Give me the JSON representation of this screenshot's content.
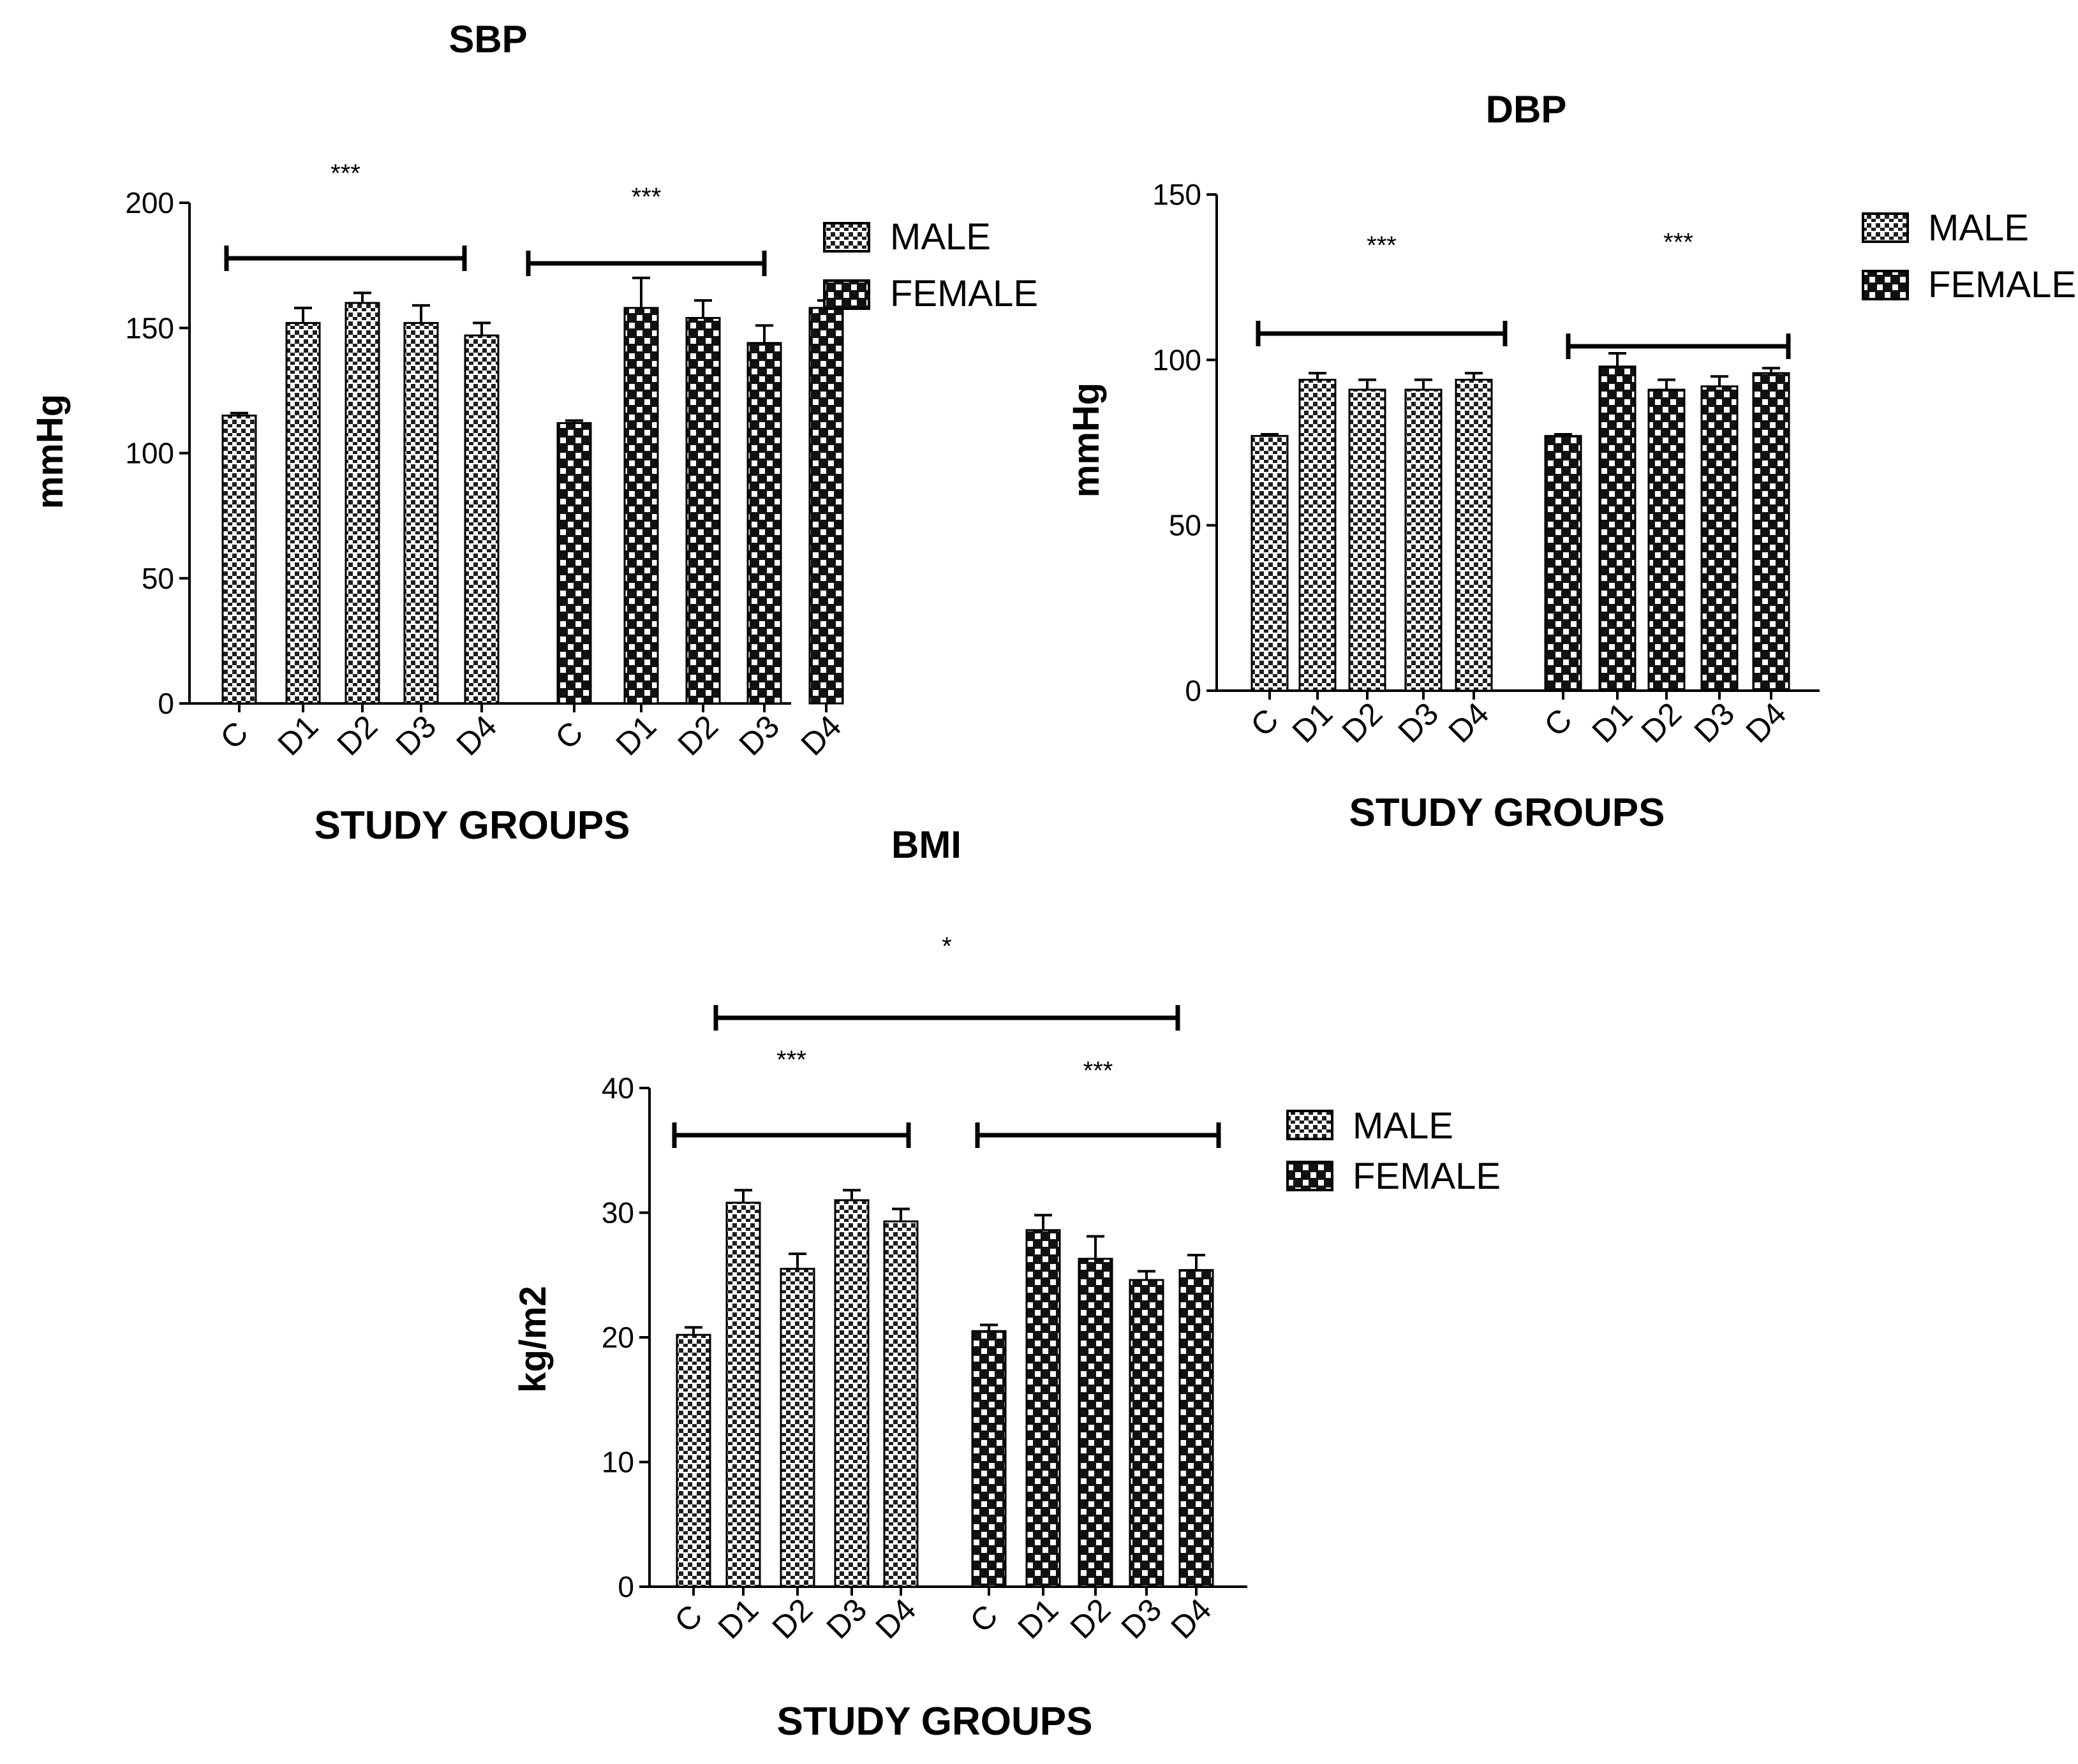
{
  "chart_data": [
    {
      "type": "bar",
      "title": "SBP",
      "ylabel": "mmHg",
      "xlabel": "STUDY GROUPS",
      "ylim": [
        0,
        200
      ],
      "yticks": [
        0,
        50,
        100,
        150,
        200
      ],
      "categories": [
        "C",
        "D1",
        "D2",
        "D3",
        "D4"
      ],
      "legend_position": "right",
      "grid": false,
      "series": [
        {
          "name": "MALE",
          "values": [
            115,
            152,
            160,
            152,
            147
          ],
          "errors": [
            1,
            6,
            4,
            7,
            5
          ]
        },
        {
          "name": "FEMALE",
          "values": [
            112,
            158,
            154,
            144,
            158
          ],
          "errors": [
            1,
            12,
            7,
            7,
            3
          ]
        }
      ],
      "significance": [
        {
          "label": "***",
          "span": "MALE"
        },
        {
          "label": "***",
          "span": "FEMALE"
        }
      ]
    },
    {
      "type": "bar",
      "title": "DBP",
      "ylabel": "mmHg",
      "xlabel": "STUDY GROUPS",
      "ylim": [
        0,
        150
      ],
      "yticks": [
        0,
        50,
        100,
        150
      ],
      "categories": [
        "C",
        "D1",
        "D2",
        "D3",
        "D4"
      ],
      "legend_position": "right",
      "grid": false,
      "series": [
        {
          "name": "MALE",
          "values": [
            77,
            94,
            91,
            91,
            94
          ],
          "errors": [
            0.5,
            2,
            3,
            3,
            2
          ]
        },
        {
          "name": "FEMALE",
          "values": [
            77,
            98,
            91,
            92,
            96
          ],
          "errors": [
            0.5,
            4,
            3,
            3,
            1.5
          ]
        }
      ],
      "significance": [
        {
          "label": "***",
          "span": "MALE"
        },
        {
          "label": "***",
          "span": "FEMALE"
        }
      ]
    },
    {
      "type": "bar",
      "title": "BMI",
      "ylabel": "kg/m2",
      "xlabel": "STUDY GROUPS",
      "ylim": [
        0,
        40
      ],
      "yticks": [
        0,
        10,
        20,
        30,
        40
      ],
      "categories": [
        "C",
        "D1",
        "D2",
        "D3",
        "D4"
      ],
      "legend_position": "right",
      "grid": false,
      "series": [
        {
          "name": "MALE",
          "values": [
            20.2,
            30.8,
            25.5,
            31.0,
            29.3
          ],
          "errors": [
            0.6,
            1.0,
            1.2,
            0.8,
            1.0
          ]
        },
        {
          "name": "FEMALE",
          "values": [
            20.5,
            28.6,
            26.3,
            24.6,
            25.4
          ],
          "errors": [
            0.5,
            1.2,
            1.8,
            0.7,
            1.2
          ]
        }
      ],
      "significance": [
        {
          "label": "*",
          "span": "MALE-FEMALE"
        },
        {
          "label": "***",
          "span": "MALE"
        },
        {
          "label": "***",
          "span": "FEMALE"
        }
      ]
    }
  ],
  "colors": {
    "ink": "#000000",
    "bar_fill_dark": "#1e1e1e",
    "bar_fill_light": "#ffffff",
    "background": "#ffffff"
  }
}
